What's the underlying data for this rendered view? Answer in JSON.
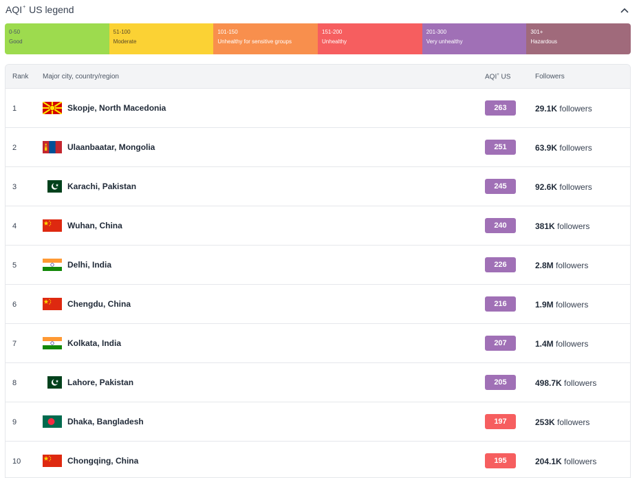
{
  "legend": {
    "title_main": "AQI",
    "title_sup": "+",
    "title_rest": " US legend",
    "segments": [
      {
        "range": "0-50",
        "label": "Good",
        "color": "#9ddb4e"
      },
      {
        "range": "51-100",
        "label": "Moderate",
        "color": "#fbd234"
      },
      {
        "range": "101-150",
        "label": "Unhealthy for sensitive groups",
        "color": "#f88f4d"
      },
      {
        "range": "151-200",
        "label": "Unhealthy",
        "color": "#f65e5f"
      },
      {
        "range": "201-300",
        "label": "Very unhealthy",
        "color": "#a070b6"
      },
      {
        "range": "301+",
        "label": "Hazardous",
        "color": "#a06a7b"
      }
    ]
  },
  "table": {
    "headers": {
      "rank": "Rank",
      "city": "Major city, country/region",
      "aqi_main": "AQI",
      "aqi_sup": "+",
      "aqi_rest": " US",
      "followers": "Followers"
    },
    "rows": [
      {
        "rank": "1",
        "flag": "north-macedonia-flag",
        "city": "Skopje, North Macedonia",
        "aqi": "263",
        "aqi_color": "#a070b6",
        "followers_num": "29.1K",
        "followers_word": "followers"
      },
      {
        "rank": "2",
        "flag": "mongolia-flag",
        "city": "Ulaanbaatar, Mongolia",
        "aqi": "251",
        "aqi_color": "#a070b6",
        "followers_num": "63.9K",
        "followers_word": "followers"
      },
      {
        "rank": "3",
        "flag": "pakistan-flag",
        "city": "Karachi, Pakistan",
        "aqi": "245",
        "aqi_color": "#a070b6",
        "followers_num": "92.6K",
        "followers_word": "followers"
      },
      {
        "rank": "4",
        "flag": "china-flag",
        "city": "Wuhan, China",
        "aqi": "240",
        "aqi_color": "#a070b6",
        "followers_num": "381K",
        "followers_word": "followers"
      },
      {
        "rank": "5",
        "flag": "india-flag",
        "city": "Delhi, India",
        "aqi": "226",
        "aqi_color": "#a070b6",
        "followers_num": "2.8M",
        "followers_word": "followers"
      },
      {
        "rank": "6",
        "flag": "china-flag",
        "city": "Chengdu, China",
        "aqi": "216",
        "aqi_color": "#a070b6",
        "followers_num": "1.9M",
        "followers_word": "followers"
      },
      {
        "rank": "7",
        "flag": "india-flag",
        "city": "Kolkata, India",
        "aqi": "207",
        "aqi_color": "#a070b6",
        "followers_num": "1.4M",
        "followers_word": "followers"
      },
      {
        "rank": "8",
        "flag": "pakistan-flag",
        "city": "Lahore, Pakistan",
        "aqi": "205",
        "aqi_color": "#a070b6",
        "followers_num": "498.7K",
        "followers_word": "followers"
      },
      {
        "rank": "9",
        "flag": "bangladesh-flag",
        "city": "Dhaka, Bangladesh",
        "aqi": "197",
        "aqi_color": "#f65e5f",
        "followers_num": "253K",
        "followers_word": "followers"
      },
      {
        "rank": "10",
        "flag": "china-flag",
        "city": "Chongqing, China",
        "aqi": "195",
        "aqi_color": "#f65e5f",
        "followers_num": "204.1K",
        "followers_word": "followers"
      }
    ]
  }
}
